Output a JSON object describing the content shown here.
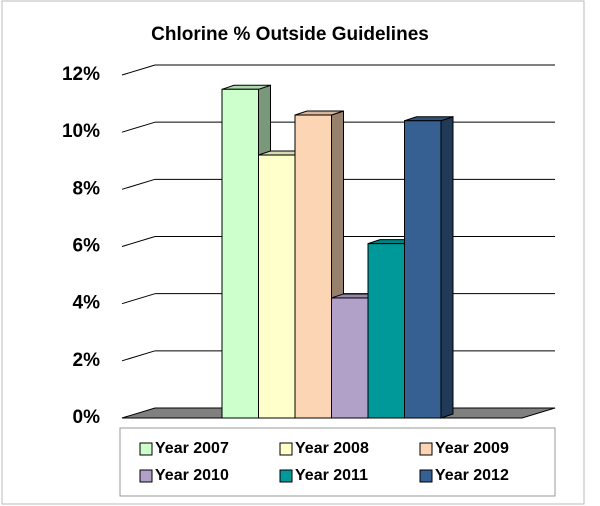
{
  "chart_data": {
    "type": "bar3d",
    "title": "Chlorine % Outside Guidelines",
    "series": [
      {
        "name": "Year 2007",
        "color": "#ccffcc",
        "values": [
          11.5
        ]
      },
      {
        "name": "Year 2008",
        "color": "#ffffcc",
        "values": [
          9.2
        ]
      },
      {
        "name": "Year 2009",
        "color": "#fcd5b4",
        "values": [
          10.6
        ]
      },
      {
        "name": "Year 2010",
        "color": "#b1a0c7",
        "values": [
          4.2
        ]
      },
      {
        "name": "Year 2011",
        "color": "#009999",
        "values": [
          6.1
        ]
      },
      {
        "name": "Year 2012",
        "color": "#366092",
        "values": [
          10.4
        ]
      }
    ],
    "ylim": [
      0,
      12
    ],
    "yticks": [
      {
        "value": 0,
        "label": "0%"
      },
      {
        "value": 2,
        "label": "2%"
      },
      {
        "value": 4,
        "label": "4%"
      },
      {
        "value": 6,
        "label": "6%"
      },
      {
        "value": 8,
        "label": "8%"
      },
      {
        "value": 10,
        "label": "10%"
      },
      {
        "value": 12,
        "label": "12%"
      }
    ],
    "grid": true
  }
}
